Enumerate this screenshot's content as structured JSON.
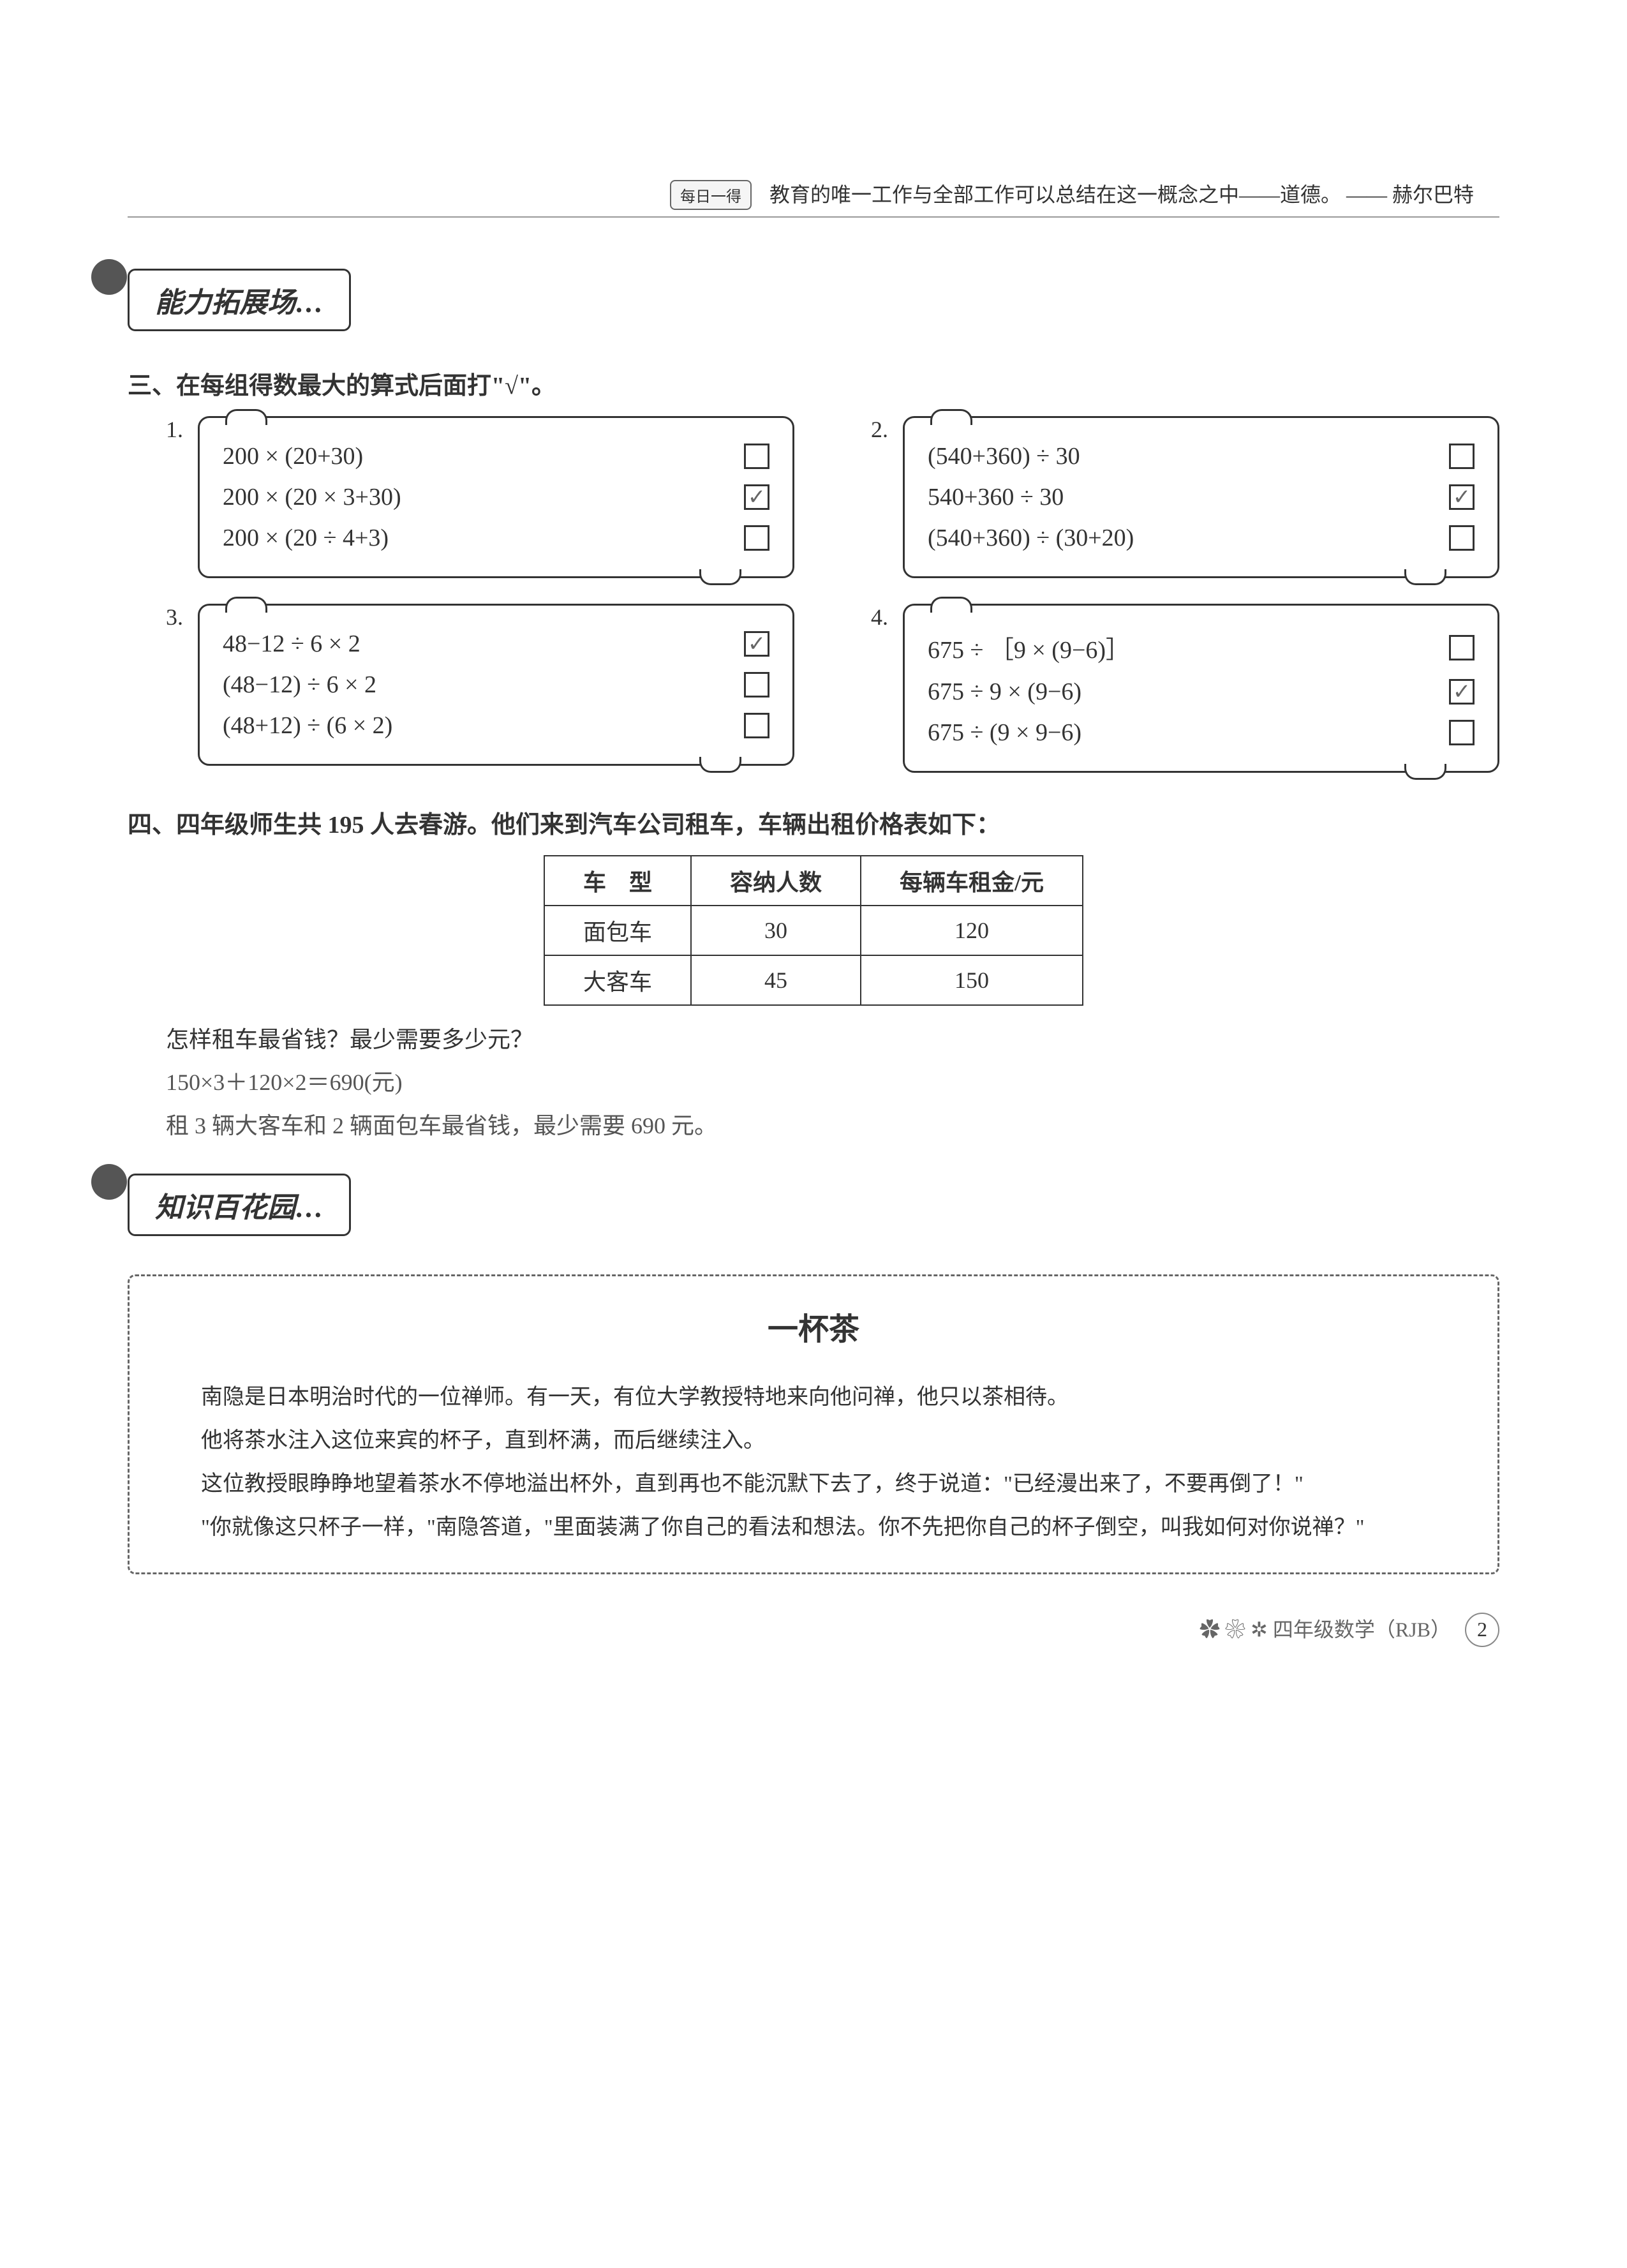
{
  "header": {
    "daily_label": "每日一得",
    "quote": "教育的唯一工作与全部工作可以总结在这一概念之中——道德。 —— 赫尔巴特"
  },
  "section1": {
    "banner": "能力拓展场…",
    "q3_title": "三、在每组得数最大的算式后面打\"√\"。",
    "problems": [
      {
        "num": "1.",
        "rows": [
          {
            "expr": "200 × (20+30)",
            "checked": false
          },
          {
            "expr": "200 × (20 × 3+30)",
            "checked": true
          },
          {
            "expr": "200 × (20 ÷ 4+3)",
            "checked": false
          }
        ]
      },
      {
        "num": "2.",
        "rows": [
          {
            "expr": "(540+360) ÷ 30",
            "checked": false
          },
          {
            "expr": "540+360 ÷ 30",
            "checked": true
          },
          {
            "expr": "(540+360) ÷ (30+20)",
            "checked": false
          }
        ]
      },
      {
        "num": "3.",
        "rows": [
          {
            "expr": "48−12 ÷ 6 × 2",
            "checked": true
          },
          {
            "expr": "(48−12) ÷ 6 × 2",
            "checked": false
          },
          {
            "expr": "(48+12) ÷ (6 × 2)",
            "checked": false
          }
        ]
      },
      {
        "num": "4.",
        "rows": [
          {
            "expr": "675 ÷ ［9 × (9−6)］",
            "checked": false
          },
          {
            "expr": "675 ÷ 9 × (9−6)",
            "checked": true
          },
          {
            "expr": "675 ÷ (9 × 9−6)",
            "checked": false
          }
        ]
      }
    ],
    "q4_title": "四、四年级师生共 195 人去春游。他们来到汽车公司租车，车辆出租价格表如下：",
    "table": {
      "headers": [
        "车　型",
        "容纳人数",
        "每辆车租金/元"
      ],
      "rows": [
        [
          "面包车",
          "30",
          "120"
        ],
        [
          "大客车",
          "45",
          "150"
        ]
      ]
    },
    "q4_question": "怎样租车最省钱？最少需要多少元？",
    "q4_answer1": "150×3＋120×2＝690(元)",
    "q4_answer2": "租 3 辆大客车和 2 辆面包车最省钱，最少需要 690 元。"
  },
  "section2": {
    "banner": "知识百花园…",
    "story_title": "一杯茶",
    "paragraphs": [
      "南隐是日本明治时代的一位禅师。有一天，有位大学教授特地来向他问禅，他只以茶相待。",
      "他将茶水注入这位来宾的杯子，直到杯满，而后继续注入。",
      "这位教授眼睁睁地望着茶水不停地溢出杯外，直到再也不能沉默下去了，终于说道：\"已经漫出来了，不要再倒了！\"",
      "\"你就像这只杯子一样，\"南隐答道，\"里面装满了你自己的看法和想法。你不先把你自己的杯子倒空，叫我如何对你说禅？\""
    ]
  },
  "footer": {
    "text": "四年级数学（RJB）",
    "page": "2"
  },
  "style": {
    "check_mark": "✓",
    "colors": {
      "text": "#333333",
      "answer": "#555555",
      "border": "#333333",
      "bg": "#ffffff"
    }
  }
}
